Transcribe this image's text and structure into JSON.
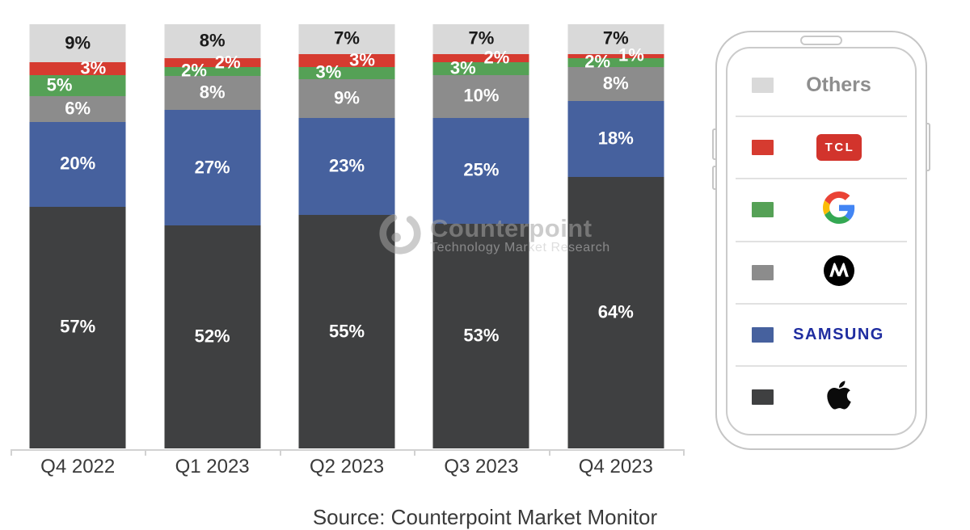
{
  "chart_data": {
    "type": "bar",
    "subtype": "stacked-percent-column",
    "title": "",
    "xlabel": "",
    "ylabel": "",
    "unit": "%",
    "ylim": [
      0,
      100
    ],
    "grid": false,
    "legend_position": "right-phone-graphic",
    "categories": [
      "Q4 2022",
      "Q1 2023",
      "Q2 2023",
      "Q3 2023",
      "Q4 2023"
    ],
    "stack_top_down": [
      "Others",
      "TCL",
      "Google",
      "Motorola",
      "Samsung",
      "Apple"
    ],
    "series": [
      {
        "name": "Apple",
        "color": "#3f4041",
        "values": [
          57,
          52,
          55,
          53,
          64
        ]
      },
      {
        "name": "Samsung",
        "color": "#46619e",
        "values": [
          20,
          27,
          23,
          25,
          18
        ]
      },
      {
        "name": "Motorola",
        "color": "#8c8c8c",
        "values": [
          6,
          8,
          9,
          10,
          8
        ]
      },
      {
        "name": "Google",
        "color": "#55a156",
        "values": [
          5,
          2,
          3,
          3,
          2
        ]
      },
      {
        "name": "TCL",
        "color": "#d63b30",
        "values": [
          3,
          2,
          3,
          2,
          1
        ]
      },
      {
        "name": "Others",
        "color": "#d9d9d9",
        "values": [
          9,
          8,
          7,
          7,
          7
        ]
      }
    ]
  },
  "watermark": {
    "brand": "Counterpoint",
    "subtitle": "Technology Market Research"
  },
  "legend": {
    "items": [
      {
        "key": "others",
        "label": "Others",
        "color": "#d9d9d9"
      },
      {
        "key": "tcl",
        "label": "TCL",
        "color": "#d63b30"
      },
      {
        "key": "google",
        "label": "Google",
        "color": "#55a156"
      },
      {
        "key": "motorola",
        "label": "Motorola",
        "color": "#8c8c8c"
      },
      {
        "key": "samsung",
        "label": "SAMSUNG",
        "color": "#46619e"
      },
      {
        "key": "apple",
        "label": "Apple",
        "color": "#3f4041"
      }
    ]
  },
  "footer": {
    "source_note": "Source: Counterpoint Market Monitor"
  }
}
